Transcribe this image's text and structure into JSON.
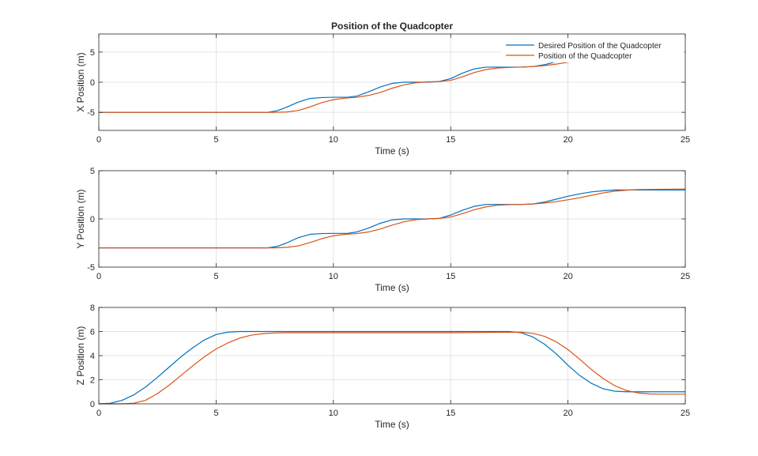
{
  "figure": {
    "title": "Position of the Quadcopter",
    "legend": [
      "Desired Position of the Quadcopter",
      "Position of the Quadcopter"
    ],
    "colors": {
      "desired": "#0072BD",
      "actual": "#D95319",
      "grid": "#dcdcdc",
      "axis": "#262626"
    }
  },
  "chart_data": [
    {
      "type": "line",
      "title": "Position of the Quadcopter",
      "xlabel": "Time (s)",
      "ylabel": "X Position (m)",
      "xlim": [
        0,
        25
      ],
      "ylim": [
        -8,
        8
      ],
      "xticks": [
        0,
        5,
        10,
        15,
        20,
        25
      ],
      "yticks": [
        -5,
        0,
        5
      ],
      "grid": true,
      "legend_position": "top-right",
      "series": [
        {
          "name": "Desired Position of the Quadcopter",
          "x": [
            0,
            7.2,
            7.6,
            8.0,
            8.5,
            9.0,
            9.5,
            10.0,
            10.6,
            11.0,
            11.5,
            12.0,
            12.5,
            13.0,
            13.5,
            14.0,
            14.5,
            15.0,
            15.5,
            16.0,
            16.5,
            17.0,
            17.5,
            18.0,
            18.5,
            19.0,
            19.5,
            20.0,
            20.5,
            21.0,
            21.5,
            22.0,
            25
          ],
          "y": [
            -5,
            -5,
            -4.75,
            -4.15,
            -3.3,
            -2.7,
            -2.55,
            -2.5,
            -2.5,
            -2.3,
            -1.6,
            -0.8,
            -0.2,
            0,
            0,
            0,
            0.1,
            0.6,
            1.5,
            2.2,
            2.5,
            2.5,
            2.5,
            2.5,
            2.6,
            2.9,
            3.4,
            3.9,
            4.35,
            4.7,
            4.9,
            5.0,
            5.0
          ]
        },
        {
          "name": "Position of the Quadcopter",
          "x": [
            0,
            7.5,
            8.0,
            8.5,
            9.0,
            9.5,
            10.0,
            10.5,
            11.0,
            11.5,
            12.0,
            12.5,
            13.0,
            13.5,
            14.0,
            14.5,
            15.0,
            15.5,
            16.0,
            16.5,
            17.0,
            17.5,
            18.0,
            18.5,
            19.0,
            19.5,
            20.0,
            20.5,
            21.0,
            21.5,
            22.0,
            22.5,
            23.0,
            25
          ],
          "y": [
            -5,
            -5,
            -4.95,
            -4.7,
            -4.1,
            -3.4,
            -2.9,
            -2.65,
            -2.5,
            -2.2,
            -1.7,
            -1.0,
            -0.45,
            -0.1,
            0.05,
            0.1,
            0.3,
            0.9,
            1.6,
            2.1,
            2.35,
            2.45,
            2.5,
            2.6,
            2.75,
            3.0,
            3.3,
            3.7,
            4.1,
            4.5,
            4.75,
            4.9,
            5.0,
            5.05
          ]
        }
      ]
    },
    {
      "type": "line",
      "title": "",
      "xlabel": "Time (s)",
      "ylabel": "Y Position (m)",
      "xlim": [
        0,
        25
      ],
      "ylim": [
        -5,
        5
      ],
      "xticks": [
        0,
        5,
        10,
        15,
        20,
        25
      ],
      "yticks": [
        -5,
        0,
        5
      ],
      "grid": true,
      "series": [
        {
          "name": "Desired Position of the Quadcopter",
          "x": [
            0,
            7.2,
            7.6,
            8.0,
            8.5,
            9.0,
            9.5,
            10.0,
            10.6,
            11.0,
            11.5,
            12.0,
            12.5,
            13.0,
            13.5,
            14.0,
            14.5,
            15.0,
            15.5,
            16.0,
            16.5,
            17.0,
            17.5,
            18.0,
            18.5,
            19.0,
            19.5,
            20.0,
            20.5,
            21.0,
            21.5,
            22.0,
            25
          ],
          "y": [
            -3,
            -3,
            -2.85,
            -2.5,
            -1.95,
            -1.6,
            -1.52,
            -1.5,
            -1.5,
            -1.35,
            -0.95,
            -0.45,
            -0.1,
            0,
            0,
            0,
            0.05,
            0.4,
            0.9,
            1.3,
            1.5,
            1.5,
            1.5,
            1.5,
            1.55,
            1.75,
            2.05,
            2.35,
            2.6,
            2.8,
            2.92,
            3.0,
            3.0
          ]
        },
        {
          "name": "Position of the Quadcopter",
          "x": [
            0,
            7.5,
            8.0,
            8.5,
            9.0,
            9.5,
            10.0,
            10.5,
            11.0,
            11.5,
            12.0,
            12.5,
            13.0,
            13.5,
            14.0,
            14.5,
            15.0,
            15.5,
            16.0,
            16.5,
            17.0,
            17.5,
            18.0,
            18.5,
            19.0,
            19.5,
            20.0,
            20.5,
            21.0,
            21.5,
            22.0,
            22.5,
            23.0,
            25
          ],
          "y": [
            -3,
            -3,
            -2.95,
            -2.8,
            -2.45,
            -2.05,
            -1.75,
            -1.6,
            -1.52,
            -1.35,
            -1.05,
            -0.65,
            -0.3,
            -0.08,
            0.0,
            0.05,
            0.2,
            0.55,
            0.95,
            1.25,
            1.42,
            1.48,
            1.5,
            1.55,
            1.65,
            1.8,
            1.98,
            2.2,
            2.45,
            2.7,
            2.88,
            2.98,
            3.05,
            3.1
          ]
        }
      ]
    },
    {
      "type": "line",
      "title": "",
      "xlabel": "Time (s)",
      "ylabel": "Z Position (m)",
      "xlim": [
        0,
        25
      ],
      "ylim": [
        0,
        8
      ],
      "xticks": [
        0,
        5,
        10,
        15,
        20,
        25
      ],
      "yticks": [
        0,
        2,
        4,
        6,
        8
      ],
      "grid": true,
      "series": [
        {
          "name": "Desired Position of the Quadcopter",
          "x": [
            0,
            0.5,
            1.0,
            1.5,
            2.0,
            2.5,
            3.0,
            3.5,
            4.0,
            4.5,
            5.0,
            5.5,
            6.0,
            7.0,
            10,
            15,
            17.5,
            18.0,
            18.5,
            19.0,
            19.5,
            20.0,
            20.5,
            21.0,
            21.5,
            22.0,
            22.5,
            23.0,
            25
          ],
          "y": [
            0,
            0.05,
            0.3,
            0.75,
            1.4,
            2.2,
            3.05,
            3.9,
            4.65,
            5.3,
            5.75,
            5.95,
            6.0,
            6.0,
            6.0,
            6.0,
            6.0,
            5.9,
            5.55,
            4.95,
            4.15,
            3.2,
            2.35,
            1.7,
            1.25,
            1.05,
            1.0,
            1.0,
            1.0
          ]
        },
        {
          "name": "Position of the Quadcopter",
          "x": [
            0,
            1.0,
            1.5,
            2.0,
            2.5,
            3.0,
            3.5,
            4.0,
            4.5,
            5.0,
            5.5,
            6.0,
            6.5,
            7.0,
            7.5,
            8.0,
            10,
            15,
            18.0,
            18.5,
            19.0,
            19.5,
            20.0,
            20.5,
            21.0,
            21.5,
            22.0,
            22.5,
            23.0,
            23.5,
            24.0,
            25
          ],
          "y": [
            0,
            0,
            0.05,
            0.3,
            0.85,
            1.55,
            2.35,
            3.15,
            3.9,
            4.55,
            5.05,
            5.45,
            5.7,
            5.82,
            5.88,
            5.9,
            5.9,
            5.9,
            5.95,
            5.85,
            5.6,
            5.15,
            4.5,
            3.7,
            2.85,
            2.1,
            1.5,
            1.1,
            0.9,
            0.82,
            0.8,
            0.8
          ]
        }
      ]
    }
  ]
}
